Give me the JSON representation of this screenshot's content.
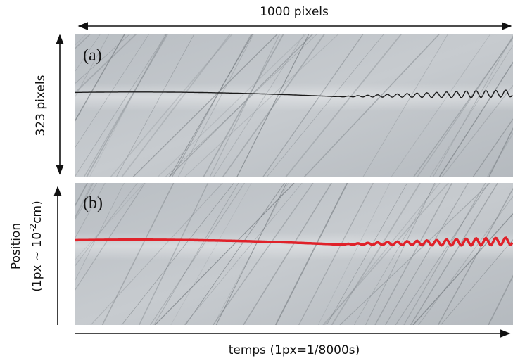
{
  "top_label": "1000 pixels",
  "side_label": "323 pixels",
  "panels": [
    {
      "label": "(a)"
    },
    {
      "label": "(b)"
    }
  ],
  "y_label": {
    "title": "Position",
    "unit_prefix": "(1px ~ 10",
    "unit_exponent": "-2",
    "unit_suffix": "cm)"
  },
  "x_label": "temps (1px=1/8000s)"
}
